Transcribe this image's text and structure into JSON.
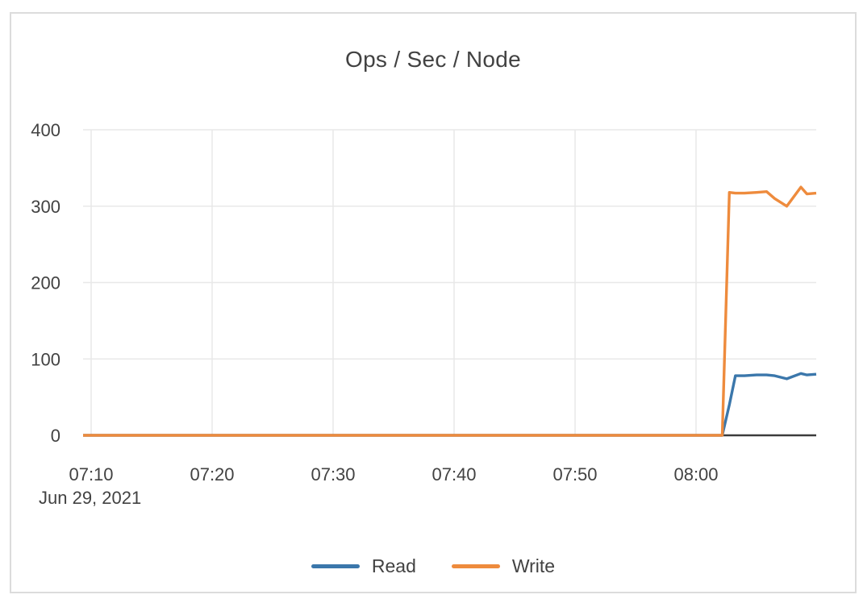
{
  "card": {
    "title": "Ops / Sec / Node"
  },
  "chart_data": {
    "type": "line",
    "title": "Ops / Sec / Node",
    "x_date_label": "Jun 29, 2021",
    "x_ticks": [
      "07:10",
      "07:20",
      "07:30",
      "07:40",
      "07:50",
      "08:00"
    ],
    "x_range": [
      "07:09:20",
      "08:09:56"
    ],
    "ylim": [
      0,
      400
    ],
    "y_ticks": [
      0,
      100,
      200,
      300,
      400
    ],
    "grid": true,
    "legend_position": "bottom",
    "x": [
      "07:09:20",
      "08:02:10",
      "08:02:45",
      "08:03:15",
      "08:04:00",
      "08:05:00",
      "08:05:50",
      "08:06:30",
      "08:07:30",
      "08:08:40",
      "08:09:10",
      "08:09:56"
    ],
    "series": [
      {
        "name": "Read",
        "color": "#3b77ab",
        "values": [
          0,
          0,
          40,
          78,
          78,
          79,
          79,
          78,
          74,
          81,
          79,
          80
        ]
      },
      {
        "name": "Write",
        "color": "#ee8b3d",
        "values": [
          0,
          0,
          318,
          317,
          317,
          318,
          319,
          310,
          300,
          325,
          316,
          317
        ]
      }
    ],
    "axis_color": "#3c3c3c",
    "grid_color": "#e8e8e8",
    "text_color": "#424242"
  }
}
